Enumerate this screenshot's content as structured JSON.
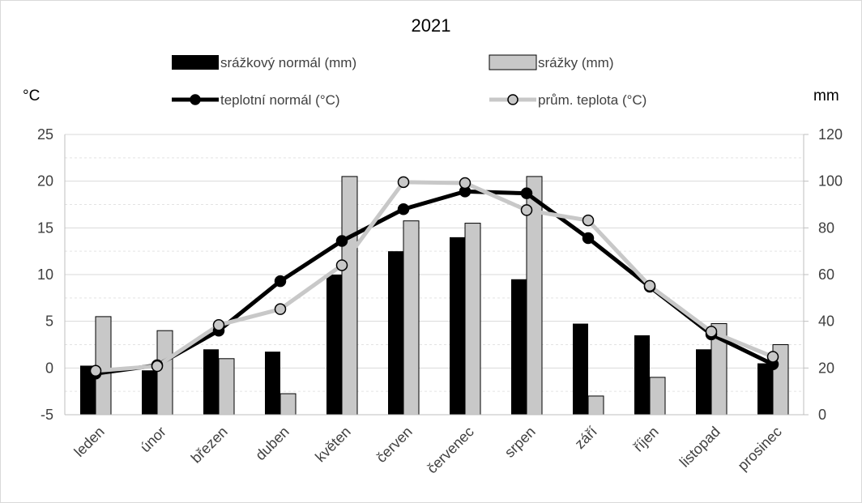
{
  "chart_data": {
    "type": "bar",
    "title": "2021",
    "categories": [
      "leden",
      "únor",
      "březen",
      "duben",
      "květen",
      "červen",
      "červenec",
      "srpen",
      "září",
      "říjen",
      "listopad",
      "prosinec"
    ],
    "left_axis": {
      "unit_label": "°C",
      "range": [
        -5,
        25
      ],
      "ticks": [
        "-5",
        "0",
        "5",
        "10",
        "15",
        "20",
        "25"
      ]
    },
    "right_axis": {
      "unit_label": "mm",
      "range": [
        0,
        120
      ],
      "ticks": [
        "0",
        "20",
        "40",
        "60",
        "80",
        "100",
        "120"
      ]
    },
    "grid": true,
    "legend_position": "top",
    "series": [
      {
        "name": "srážkový normál (mm)",
        "type": "bar",
        "axis": "right",
        "color": "#000000",
        "values": [
          21,
          19,
          28,
          27,
          60,
          70,
          76,
          58,
          39,
          34,
          28,
          22
        ]
      },
      {
        "name": "srážky (mm)",
        "type": "bar",
        "axis": "right",
        "color": "#c8c8c8",
        "values": [
          42,
          36,
          24,
          9,
          102,
          83,
          82,
          102,
          8,
          16,
          39,
          30
        ]
      },
      {
        "name": "teplotní normál (°C)",
        "type": "line",
        "axis": "left",
        "color": "#000000",
        "values": [
          -0.6,
          0.3,
          4.0,
          9.3,
          13.6,
          17.0,
          18.9,
          18.7,
          13.9,
          8.7,
          3.6,
          0.4
        ]
      },
      {
        "name": "prům. teplota (°C)",
        "type": "line",
        "axis": "left",
        "color": "#c8c8c8",
        "values": [
          -0.3,
          0.2,
          4.6,
          6.3,
          11.0,
          19.9,
          19.8,
          16.9,
          15.8,
          8.8,
          3.9,
          1.2
        ]
      }
    ]
  }
}
